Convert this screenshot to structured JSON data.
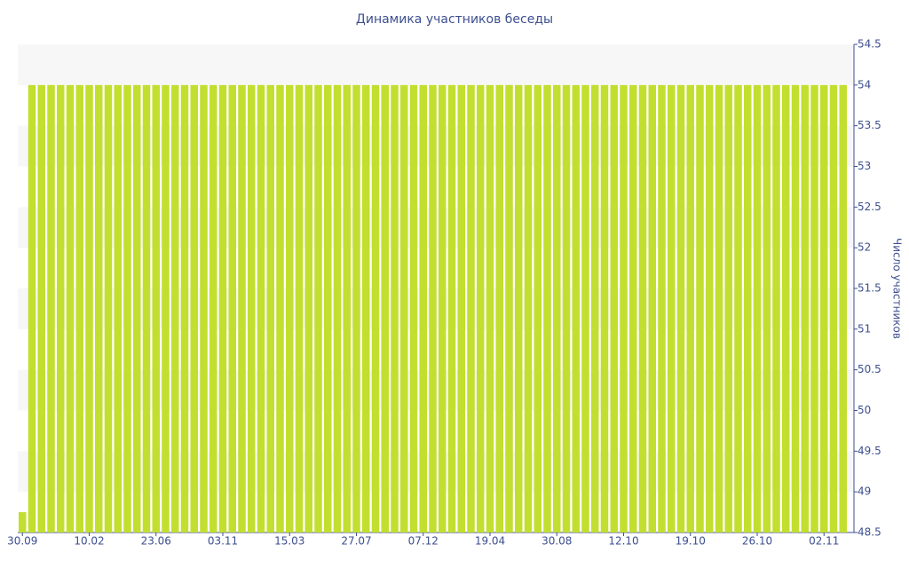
{
  "chart_data": {
    "type": "bar",
    "title": "Динамика участников беседы",
    "y_label": "Число участников",
    "categories": [
      "30.09",
      null,
      null,
      null,
      null,
      null,
      null,
      "10.02",
      null,
      null,
      null,
      null,
      null,
      null,
      "23.06",
      null,
      null,
      null,
      null,
      null,
      null,
      "03.11",
      null,
      null,
      null,
      null,
      null,
      null,
      "15.03",
      null,
      null,
      null,
      null,
      null,
      null,
      "27.07",
      null,
      null,
      null,
      null,
      null,
      null,
      "07.12",
      null,
      null,
      null,
      null,
      null,
      null,
      "19.04",
      null,
      null,
      null,
      null,
      null,
      null,
      "30.08",
      null,
      null,
      null,
      null,
      null,
      null,
      "12.10",
      null,
      null,
      null,
      null,
      null,
      null,
      "19.10",
      null,
      null,
      null,
      null,
      null,
      null,
      "26.10",
      null,
      null,
      null,
      null,
      null,
      null,
      "02.11",
      null,
      null
    ],
    "values": [
      48.75,
      54,
      54,
      54,
      54,
      54,
      54,
      54,
      54,
      54,
      54,
      54,
      54,
      54,
      54,
      54,
      54,
      54,
      54,
      54,
      54,
      54,
      54,
      54,
      54,
      54,
      54,
      54,
      54,
      54,
      54,
      54,
      54,
      54,
      54,
      54,
      54,
      54,
      54,
      54,
      54,
      54,
      54,
      54,
      54,
      54,
      54,
      54,
      54,
      54,
      54,
      54,
      54,
      54,
      54,
      54,
      54,
      54,
      54,
      54,
      54,
      54,
      54,
      54,
      54,
      54,
      54,
      54,
      54,
      54,
      54,
      54,
      54,
      54,
      54,
      54,
      54,
      54,
      54,
      54,
      54,
      54,
      54,
      54,
      54,
      54,
      54
    ],
    "color": "#c2df2f",
    "ylim": [
      48.5,
      54.5
    ],
    "yticks": [
      48.5,
      49,
      49.5,
      50,
      50.5,
      51,
      51.5,
      52,
      52.5,
      53,
      53.5,
      54,
      54.5
    ],
    "y_axis_side": "right",
    "bands": true
  }
}
